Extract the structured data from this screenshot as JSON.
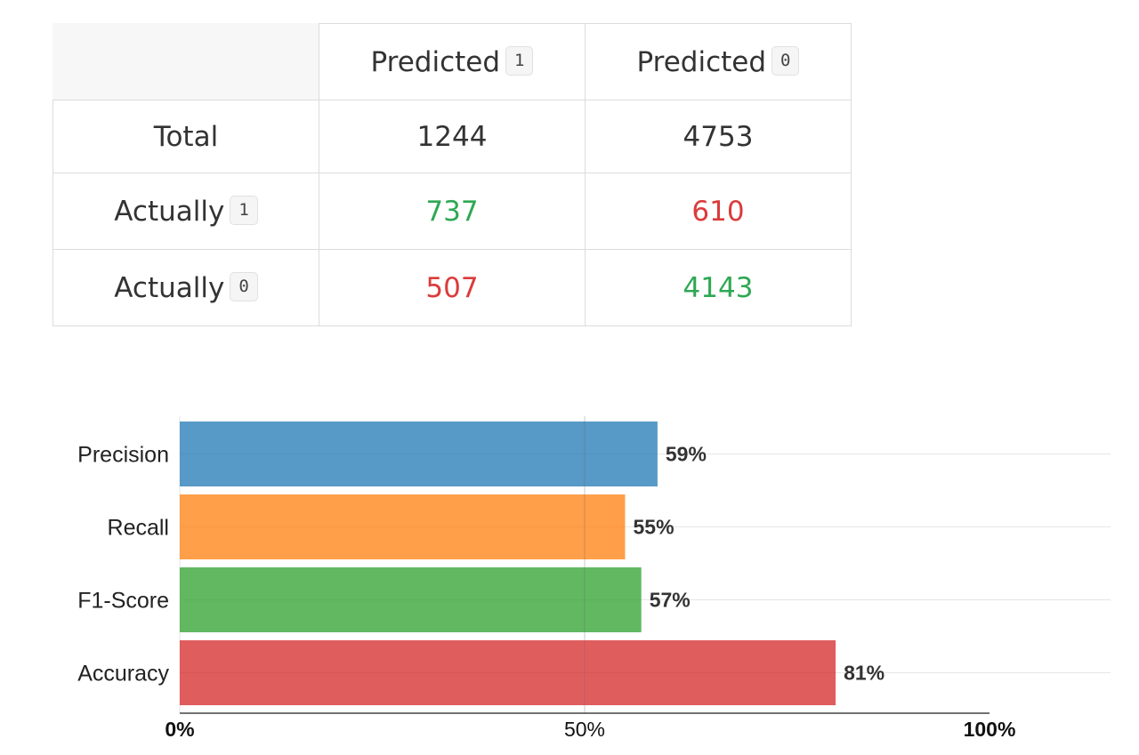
{
  "confusion_matrix": {
    "header": {
      "predicted_label": "Predicted",
      "pred_1_code": "1",
      "pred_0_code": "0"
    },
    "rows": {
      "total": {
        "label": "Total",
        "pred_1": "1244",
        "pred_0": "4753"
      },
      "actual_1": {
        "label": "Actually",
        "code": "1",
        "pred_1": "737",
        "pred_0": "610"
      },
      "actual_0": {
        "label": "Actually",
        "code": "0",
        "pred_1": "507",
        "pred_0": "4143"
      }
    },
    "colors": {
      "correct": "#2ea853",
      "incorrect": "#db3b3b",
      "text": "#333333"
    }
  },
  "chart_data": {
    "type": "bar",
    "orientation": "horizontal",
    "categories": [
      "Precision",
      "Recall",
      "F1-Score",
      "Accuracy"
    ],
    "values": [
      59,
      55,
      57,
      81
    ],
    "value_labels": [
      "59%",
      "55%",
      "57%",
      "81%"
    ],
    "colors": [
      "#1f77b4",
      "#ff7f0e",
      "#2ca02c",
      "#d62728"
    ],
    "xlim": [
      0,
      100
    ],
    "xticks": [
      {
        "value": 0,
        "label": "0%"
      },
      {
        "value": 50,
        "label": "50%"
      },
      {
        "value": 100,
        "label": "100%"
      }
    ],
    "title": "",
    "xlabel": "",
    "ylabel": "",
    "grid": true
  }
}
